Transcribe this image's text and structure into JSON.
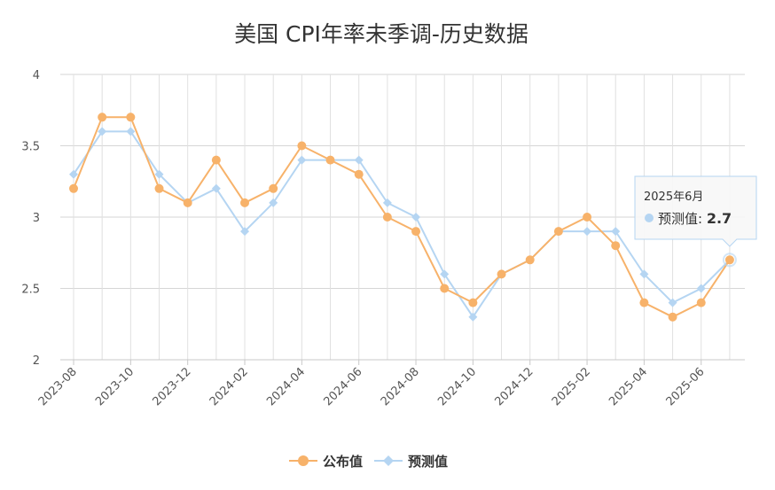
{
  "chart_data": {
    "type": "line",
    "title": "美国 CPI年率未季调-历史数据",
    "xlabel": "",
    "ylabel": "",
    "ylim": [
      2,
      4
    ],
    "yticks": [
      "2",
      "2.5",
      "3",
      "3.5",
      "4"
    ],
    "x": [
      "2023-08",
      "2023-09",
      "2023-10",
      "2023-11",
      "2023-12",
      "2024-01",
      "2024-02",
      "2024-03",
      "2024-04",
      "2024-05",
      "2024-06",
      "2024-07",
      "2024-08",
      "2024-09",
      "2024-10",
      "2024-11",
      "2024-12",
      "2025-01",
      "2025-02",
      "2025-03",
      "2025-04",
      "2025-05",
      "2025-06",
      "2025-07"
    ],
    "xtick_labels": [
      "2023-08",
      "2023-10",
      "2023-12",
      "2024-02",
      "2024-04",
      "2024-06",
      "2024-08",
      "2024-10",
      "2024-12",
      "2025-02",
      "2025-04",
      "2025-06"
    ],
    "grid": true,
    "legend_position": "bottom",
    "series": [
      {
        "name": "公布值",
        "color": "#F7B26A",
        "marker": "circle",
        "values": [
          3.2,
          3.7,
          3.7,
          3.2,
          3.1,
          3.4,
          3.1,
          3.2,
          3.5,
          3.4,
          3.3,
          3.0,
          2.9,
          2.5,
          2.4,
          2.6,
          2.7,
          2.9,
          3.0,
          2.8,
          2.4,
          2.3,
          2.4,
          2.7
        ]
      },
      {
        "name": "预测值",
        "color": "#B5D5F2",
        "marker": "diamond",
        "values": [
          3.3,
          3.6,
          3.6,
          3.3,
          3.1,
          3.2,
          2.9,
          3.1,
          3.4,
          3.4,
          3.4,
          3.1,
          3.0,
          2.6,
          2.3,
          2.6,
          2.7,
          2.9,
          2.9,
          2.9,
          2.6,
          2.4,
          2.5,
          2.7
        ]
      }
    ],
    "tooltip": {
      "header": "2025年6月",
      "series_label": "预测值: ",
      "value": "2.7",
      "index": 23
    }
  }
}
